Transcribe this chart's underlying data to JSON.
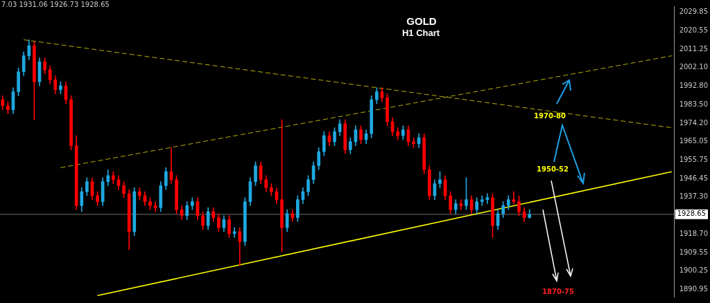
{
  "chart_data": {
    "type": "candlestick",
    "title": "GOLD",
    "subtitle": "H1 Chart",
    "categories": [
      null,
      null,
      null,
      null,
      null,
      null,
      null,
      null,
      null,
      null,
      null,
      null,
      null,
      null,
      null,
      null,
      null,
      null,
      null,
      null,
      null,
      null,
      null,
      null,
      null,
      null,
      null,
      null,
      null,
      null,
      null,
      null,
      null,
      null,
      null,
      null,
      null,
      null,
      null,
      null,
      null,
      null,
      null,
      null,
      null,
      null,
      null,
      null,
      null,
      null,
      null,
      null,
      null,
      null,
      null,
      null,
      null,
      null,
      null,
      null,
      null,
      null,
      null,
      null,
      null,
      null,
      null,
      null,
      null,
      null,
      null,
      null,
      null,
      null,
      null,
      null,
      null,
      null,
      null,
      null,
      null,
      null,
      null,
      null,
      null,
      null,
      null,
      null,
      null,
      null,
      null,
      null,
      null,
      null,
      null,
      null,
      null,
      null,
      null,
      null,
      null,
      null,
      null,
      null,
      null,
      null,
      null,
      null,
      null,
      null,
      null,
      null,
      null,
      null,
      null,
      null,
      null,
      null,
      null,
      null,
      null,
      null,
      null,
      null,
      null,
      null,
      null,
      null
    ],
    "ohlc": [
      [
        1986,
        1988,
        1981,
        1983
      ],
      [
        1983,
        1985,
        1979,
        1981
      ],
      [
        1981,
        1992,
        1979,
        1990
      ],
      [
        1990,
        2002,
        1988,
        2000
      ],
      [
        2000,
        2010,
        1998,
        2008
      ],
      [
        2008,
        2016,
        2006,
        2013
      ],
      [
        2013,
        2015,
        1976,
        1995
      ],
      [
        1995,
        2007,
        1993,
        2005
      ],
      [
        2005,
        2007,
        1999,
        2001
      ],
      [
        2001,
        2003,
        1994,
        1996
      ],
      [
        1996,
        1998,
        1989,
        1991
      ],
      [
        1991,
        1995,
        1989,
        1993
      ],
      [
        1993,
        1995,
        1984,
        1986
      ],
      [
        1986,
        1988,
        1961,
        1963
      ],
      [
        1963,
        1968,
        1931,
        1933
      ],
      [
        1933,
        1942,
        1930,
        1940
      ],
      [
        1940,
        1947,
        1938,
        1945
      ],
      [
        1945,
        1947,
        1936,
        1938
      ],
      [
        1938,
        1940,
        1933,
        1935
      ],
      [
        1935,
        1947,
        1933,
        1945
      ],
      [
        1945,
        1951,
        1943,
        1948
      ],
      [
        1948,
        1950,
        1944,
        1946
      ],
      [
        1946,
        1948,
        1941,
        1943
      ],
      [
        1943,
        1945,
        1937,
        1939
      ],
      [
        1939,
        1941,
        1911,
        1920
      ],
      [
        1920,
        1942,
        1918,
        1940
      ],
      [
        1940,
        1942,
        1936,
        1938
      ],
      [
        1938,
        1940,
        1933,
        1935
      ],
      [
        1935,
        1937,
        1931,
        1933
      ],
      [
        1933,
        1935,
        1930,
        1932
      ],
      [
        1932,
        1945,
        1930,
        1943
      ],
      [
        1943,
        1952,
        1941,
        1950
      ],
      [
        1950,
        1962,
        1944,
        1946
      ],
      [
        1946,
        1948,
        1929,
        1931
      ],
      [
        1931,
        1933,
        1926,
        1928
      ],
      [
        1928,
        1935,
        1926,
        1933
      ],
      [
        1933,
        1937,
        1931,
        1935
      ],
      [
        1935,
        1937,
        1926,
        1928
      ],
      [
        1928,
        1930,
        1921,
        1923
      ],
      [
        1923,
        1932,
        1921,
        1930
      ],
      [
        1930,
        1932,
        1925,
        1927
      ],
      [
        1927,
        1929,
        1920,
        1922
      ],
      [
        1922,
        1928,
        1920,
        1926
      ],
      [
        1926,
        1928,
        1917,
        1919
      ],
      [
        1919,
        1922,
        1917,
        1920
      ],
      [
        1920,
        1922,
        1903,
        1915
      ],
      [
        1915,
        1937,
        1913,
        1935
      ],
      [
        1935,
        1947,
        1933,
        1945
      ],
      [
        1945,
        1955,
        1943,
        1953
      ],
      [
        1953,
        1955,
        1944,
        1946
      ],
      [
        1946,
        1948,
        1940,
        1942
      ],
      [
        1942,
        1944,
        1938,
        1940
      ],
      [
        1940,
        1942,
        1934,
        1936
      ],
      [
        1936,
        1976,
        1910,
        1922
      ],
      [
        1922,
        1931,
        1920,
        1929
      ],
      [
        1929,
        1931,
        1925,
        1927
      ],
      [
        1927,
        1938,
        1925,
        1936
      ],
      [
        1936,
        1942,
        1934,
        1940
      ],
      [
        1940,
        1948,
        1938,
        1946
      ],
      [
        1946,
        1955,
        1944,
        1953
      ],
      [
        1953,
        1962,
        1951,
        1960
      ],
      [
        1960,
        1970,
        1958,
        1968
      ],
      [
        1968,
        1970,
        1963,
        1965
      ],
      [
        1965,
        1972,
        1963,
        1970
      ],
      [
        1970,
        1976,
        1968,
        1974
      ],
      [
        1974,
        1976,
        1959,
        1961
      ],
      [
        1961,
        1967,
        1959,
        1965
      ],
      [
        1965,
        1973,
        1963,
        1971
      ],
      [
        1971,
        1973,
        1964,
        1966
      ],
      [
        1966,
        1971,
        1964,
        1969
      ],
      [
        1969,
        1988,
        1967,
        1986
      ],
      [
        1986,
        1992,
        1984,
        1990
      ],
      [
        1990,
        1992,
        1985,
        1987
      ],
      [
        1987,
        1989,
        1973,
        1975
      ],
      [
        1975,
        1977,
        1968,
        1970
      ],
      [
        1970,
        1972,
        1966,
        1968
      ],
      [
        1968,
        1973,
        1966,
        1971
      ],
      [
        1971,
        1973,
        1963,
        1965
      ],
      [
        1965,
        1967,
        1962,
        1964
      ],
      [
        1964,
        1969,
        1962,
        1967
      ],
      [
        1967,
        1969,
        1949,
        1951
      ],
      [
        1951,
        1953,
        1936,
        1938
      ],
      [
        1938,
        1946,
        1936,
        1944
      ],
      [
        1944,
        1950,
        1942,
        1946
      ],
      [
        1946,
        1948,
        1936,
        1938
      ],
      [
        1938,
        1940,
        1929,
        1931
      ],
      [
        1931,
        1936,
        1929,
        1934
      ],
      [
        1934,
        1936,
        1931,
        1933
      ],
      [
        1933,
        1947,
        1931,
        1936
      ],
      [
        1936,
        1938,
        1929,
        1931
      ],
      [
        1931,
        1937,
        1929,
        1935
      ],
      [
        1935,
        1938,
        1933,
        1936
      ],
      [
        1936,
        1939,
        1934,
        1937
      ],
      [
        1937,
        1939,
        1917,
        1923
      ],
      [
        1923,
        1931,
        1921,
        1929
      ],
      [
        1929,
        1935,
        1927,
        1933
      ],
      [
        1933,
        1938,
        1931,
        1936
      ],
      [
        1936,
        1940,
        1934,
        1935
      ],
      [
        1935,
        1938,
        1928,
        1930
      ],
      [
        1930,
        1932,
        1925,
        1927
      ],
      [
        1927.03,
        1931.06,
        1926.73,
        1928.65
      ],
      null,
      null,
      null,
      null,
      null,
      null,
      null,
      null,
      null,
      null,
      null,
      null,
      null,
      null,
      null,
      null,
      null,
      null,
      null,
      null,
      null,
      null,
      null,
      null,
      null,
      null,
      null
    ],
    "colors": [
      "#ff0000",
      "#ff0000",
      "#1fa8e0",
      "#1fa8e0",
      "#1fa8e0",
      "#1fa8e0",
      "#ff0000",
      "#1fa8e0",
      "#ff0000",
      "#ff0000",
      "#ff0000",
      "#1fa8e0",
      "#ff0000",
      "#ff0000",
      "#ff0000",
      "#1fa8e0",
      "#1fa8e0",
      "#ff0000",
      "#ff0000",
      "#1fa8e0",
      "#1fa8e0",
      "#ff0000",
      "#ff0000",
      "#ff0000",
      "#ff0000",
      "#1fa8e0",
      "#ff0000",
      "#ff0000",
      "#ff0000",
      "#ff0000",
      "#1fa8e0",
      "#1fa8e0",
      "#ff0000",
      "#ff0000",
      "#ff0000",
      "#1fa8e0",
      "#1fa8e0",
      "#ff0000",
      "#ff0000",
      "#1fa8e0",
      "#ff0000",
      "#ff0000",
      "#1fa8e0",
      "#ff0000",
      "#1fa8e0",
      "#ff0000",
      "#1fa8e0",
      "#1fa8e0",
      "#1fa8e0",
      "#ff0000",
      "#ff0000",
      "#ff0000",
      "#ff0000",
      "#ff0000",
      "#1fa8e0",
      "#ff0000",
      "#1fa8e0",
      "#1fa8e0",
      "#1fa8e0",
      "#1fa8e0",
      "#1fa8e0",
      "#1fa8e0",
      "#ff0000",
      "#1fa8e0",
      "#1fa8e0",
      "#ff0000",
      "#1fa8e0",
      "#1fa8e0",
      "#ff0000",
      "#1fa8e0",
      "#1fa8e0",
      "#1fa8e0",
      "#ff0000",
      "#ff0000",
      "#ff0000",
      "#ff0000",
      "#1fa8e0",
      "#ff0000",
      "#ff0000",
      "#1fa8e0",
      "#ff0000",
      "#ff0000",
      "#1fa8e0",
      "#1fa8e0",
      "#ff0000",
      "#ff0000",
      "#1fa8e0",
      "#ff0000",
      "#1fa8e0",
      "#ff0000",
      "#1fa8e0",
      "#1fa8e0",
      "#1fa8e0",
      "#ff0000",
      "#1fa8e0",
      "#1fa8e0",
      "#1fa8e0",
      "#ff0000",
      "#ff0000",
      "#ff0000",
      "#1fa8e0",
      null,
      null,
      null,
      null,
      null,
      null,
      null,
      null,
      null,
      null,
      null,
      null,
      null,
      null,
      null,
      null,
      null,
      null,
      null,
      null,
      null,
      null,
      null,
      null,
      null,
      null,
      null
    ],
    "series": [
      {
        "type": "line",
        "color": "#b8b000",
        "line_style": "dashed",
        "values": [
          null,
          null,
          null,
          null,
          2016,
          null,
          null,
          null,
          null,
          null,
          null,
          null,
          null,
          null,
          null,
          null,
          null,
          null,
          null,
          null,
          null,
          null,
          null,
          null,
          null,
          null,
          null,
          null,
          null,
          null,
          null,
          null,
          null,
          null,
          null,
          null,
          null,
          null,
          null,
          null,
          null,
          null,
          null,
          null,
          null,
          null,
          null,
          null,
          null,
          null,
          null,
          null,
          null,
          null,
          null,
          null,
          null,
          null,
          null,
          null,
          null,
          null,
          null,
          null,
          null,
          null,
          null,
          null,
          null,
          null,
          null,
          null,
          null,
          null,
          null,
          null,
          null,
          null,
          null,
          null,
          null,
          null,
          null,
          null,
          null,
          null,
          null,
          null,
          null,
          null,
          null,
          null,
          null,
          null,
          null,
          null,
          null,
          null,
          null,
          null,
          null,
          null,
          null,
          null,
          null,
          null,
          null,
          null,
          null,
          null,
          null,
          null,
          null,
          null,
          null,
          null,
          null,
          null,
          null,
          null,
          null,
          null,
          null,
          null,
          null,
          null,
          null,
          1972
        ]
      },
      {
        "type": "line",
        "color": "#b8b000",
        "line_style": "dashed",
        "values": [
          null,
          null,
          null,
          null,
          null,
          null,
          null,
          null,
          null,
          null,
          null,
          1952,
          null,
          null,
          null,
          null,
          null,
          null,
          null,
          null,
          null,
          null,
          null,
          null,
          null,
          null,
          null,
          null,
          null,
          null,
          null,
          null,
          null,
          null,
          null,
          null,
          null,
          null,
          null,
          null,
          null,
          null,
          null,
          null,
          null,
          null,
          null,
          null,
          null,
          null,
          null,
          null,
          null,
          null,
          null,
          null,
          null,
          null,
          null,
          null,
          null,
          null,
          null,
          null,
          null,
          null,
          null,
          null,
          null,
          null,
          null,
          null,
          null,
          null,
          null,
          null,
          null,
          null,
          null,
          null,
          null,
          null,
          null,
          null,
          null,
          null,
          null,
          null,
          null,
          null,
          null,
          null,
          null,
          null,
          null,
          null,
          null,
          null,
          null,
          null,
          null,
          null,
          null,
          null,
          null,
          null,
          null,
          null,
          null,
          null,
          null,
          null,
          null,
          null,
          null,
          null,
          null,
          null,
          null,
          null,
          null,
          null,
          null,
          null,
          null,
          null,
          null,
          2008
        ]
      },
      {
        "type": "line",
        "color": "#ffff00",
        "line_style": "solid",
        "values": [
          null,
          null,
          null,
          null,
          null,
          null,
          null,
          null,
          null,
          null,
          null,
          null,
          null,
          null,
          null,
          null,
          null,
          null,
          1888,
          null,
          null,
          null,
          null,
          null,
          null,
          null,
          null,
          null,
          null,
          null,
          null,
          null,
          null,
          null,
          null,
          null,
          null,
          null,
          null,
          null,
          null,
          null,
          null,
          null,
          null,
          null,
          null,
          null,
          null,
          null,
          null,
          null,
          null,
          null,
          null,
          null,
          null,
          null,
          null,
          null,
          null,
          null,
          null,
          null,
          null,
          null,
          null,
          null,
          null,
          null,
          null,
          null,
          null,
          null,
          null,
          null,
          null,
          null,
          null,
          null,
          null,
          null,
          null,
          null,
          null,
          null,
          null,
          null,
          null,
          null,
          null,
          null,
          null,
          null,
          null,
          null,
          null,
          null,
          null,
          null,
          null,
          null,
          null,
          null,
          null,
          null,
          null,
          null,
          null,
          null,
          null,
          null,
          null,
          null,
          null,
          null,
          null,
          null,
          null,
          null,
          null,
          null,
          null,
          null,
          null,
          null,
          null,
          1950
        ]
      }
    ],
    "ylim": [
      1887.4,
      2032.8
    ],
    "yticks": [
      {
        "value": 1890.95,
        "label": "1890.95"
      },
      {
        "value": 1900.25,
        "label": "1900.25"
      },
      {
        "value": 1909.55,
        "label": "1909.55"
      },
      {
        "value": 1918.7,
        "label": "1918.70"
      },
      {
        "value": 1937.3,
        "label": "1937.30"
      },
      {
        "value": 1946.45,
        "label": "1946.45"
      },
      {
        "value": 1955.75,
        "label": "1955.75"
      },
      {
        "value": 1965.05,
        "label": "1965.05"
      },
      {
        "value": 1974.2,
        "label": "1974.20"
      },
      {
        "value": 1983.5,
        "label": "1983.50"
      },
      {
        "value": 1992.8,
        "label": "1992.80"
      },
      {
        "value": 2002.1,
        "label": "2002.10"
      },
      {
        "value": 2011.25,
        "label": "2011.25"
      },
      {
        "value": 2020.55,
        "label": "2020.55"
      },
      {
        "value": 2029.85,
        "label": "2029.85"
      }
    ],
    "ref_lines": [
      {
        "axis": "y",
        "value": 1928.65,
        "label": "1928.65",
        "color": "#6e6e6e"
      }
    ],
    "annotations": [
      "7.03 1931.06 1926.73 1928.65",
      "1970-80",
      "1950-52",
      "1870-75"
    ],
    "tick_labels": "y",
    "grid": false,
    "legend": false
  }
}
